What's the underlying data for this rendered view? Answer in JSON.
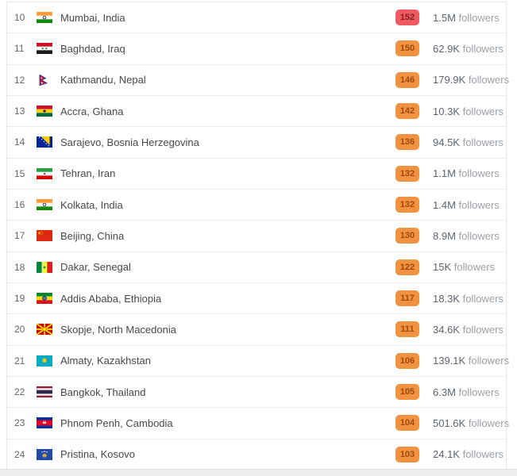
{
  "list": {
    "followers_word": "followers",
    "rows": [
      {
        "rank": "10",
        "city": "Mumbai, India",
        "flag": "india",
        "badge_value": "152",
        "badge_color": "red",
        "followers_count": "1.5M"
      },
      {
        "rank": "11",
        "city": "Baghdad, Iraq",
        "flag": "iraq",
        "badge_value": "150",
        "badge_color": "orange",
        "followers_count": "62.9K"
      },
      {
        "rank": "12",
        "city": "Kathmandu, Nepal",
        "flag": "nepal",
        "badge_value": "146",
        "badge_color": "orange",
        "followers_count": "179.9K"
      },
      {
        "rank": "13",
        "city": "Accra, Ghana",
        "flag": "ghana",
        "badge_value": "142",
        "badge_color": "orange",
        "followers_count": "10.3K"
      },
      {
        "rank": "14",
        "city": "Sarajevo, Bosnia Herzegovina",
        "flag": "bosnia",
        "badge_value": "136",
        "badge_color": "orange",
        "followers_count": "94.5K"
      },
      {
        "rank": "15",
        "city": "Tehran, Iran",
        "flag": "iran",
        "badge_value": "132",
        "badge_color": "orange",
        "followers_count": "1.1M"
      },
      {
        "rank": "16",
        "city": "Kolkata, India",
        "flag": "india",
        "badge_value": "132",
        "badge_color": "orange",
        "followers_count": "1.4M"
      },
      {
        "rank": "17",
        "city": "Beijing, China",
        "flag": "china",
        "badge_value": "130",
        "badge_color": "orange",
        "followers_count": "8.9M"
      },
      {
        "rank": "18",
        "city": "Dakar, Senegal",
        "flag": "senegal",
        "badge_value": "122",
        "badge_color": "orange",
        "followers_count": "15K"
      },
      {
        "rank": "19",
        "city": "Addis Ababa, Ethiopia",
        "flag": "ethiopia",
        "badge_value": "117",
        "badge_color": "orange",
        "followers_count": "18.3K"
      },
      {
        "rank": "20",
        "city": "Skopje, North Macedonia",
        "flag": "north-macedonia",
        "badge_value": "111",
        "badge_color": "orange",
        "followers_count": "34.6K"
      },
      {
        "rank": "21",
        "city": "Almaty, Kazakhstan",
        "flag": "kazakhstan",
        "badge_value": "106",
        "badge_color": "orange",
        "followers_count": "139.1K"
      },
      {
        "rank": "22",
        "city": "Bangkok, Thailand",
        "flag": "thailand",
        "badge_value": "105",
        "badge_color": "orange",
        "followers_count": "6.3M"
      },
      {
        "rank": "23",
        "city": "Phnom Penh, Cambodia",
        "flag": "cambodia",
        "badge_value": "104",
        "badge_color": "orange",
        "followers_count": "501.6K"
      },
      {
        "rank": "24",
        "city": "Pristina, Kosovo",
        "flag": "kosovo",
        "badge_value": "103",
        "badge_color": "orange",
        "followers_count": "24.1K"
      }
    ]
  },
  "colors": {
    "badge_orange_bg": "#f0923f",
    "badge_orange_text": "#9d4a10",
    "badge_red_bg": "#ee5a5f",
    "badge_red_text": "#811f26",
    "row_border": "#ececec",
    "rank_text": "#666666",
    "city_text": "#484848",
    "count_text": "#5d6570",
    "followers_text": "#9ba1a8",
    "footer_bg": "#efefef"
  }
}
